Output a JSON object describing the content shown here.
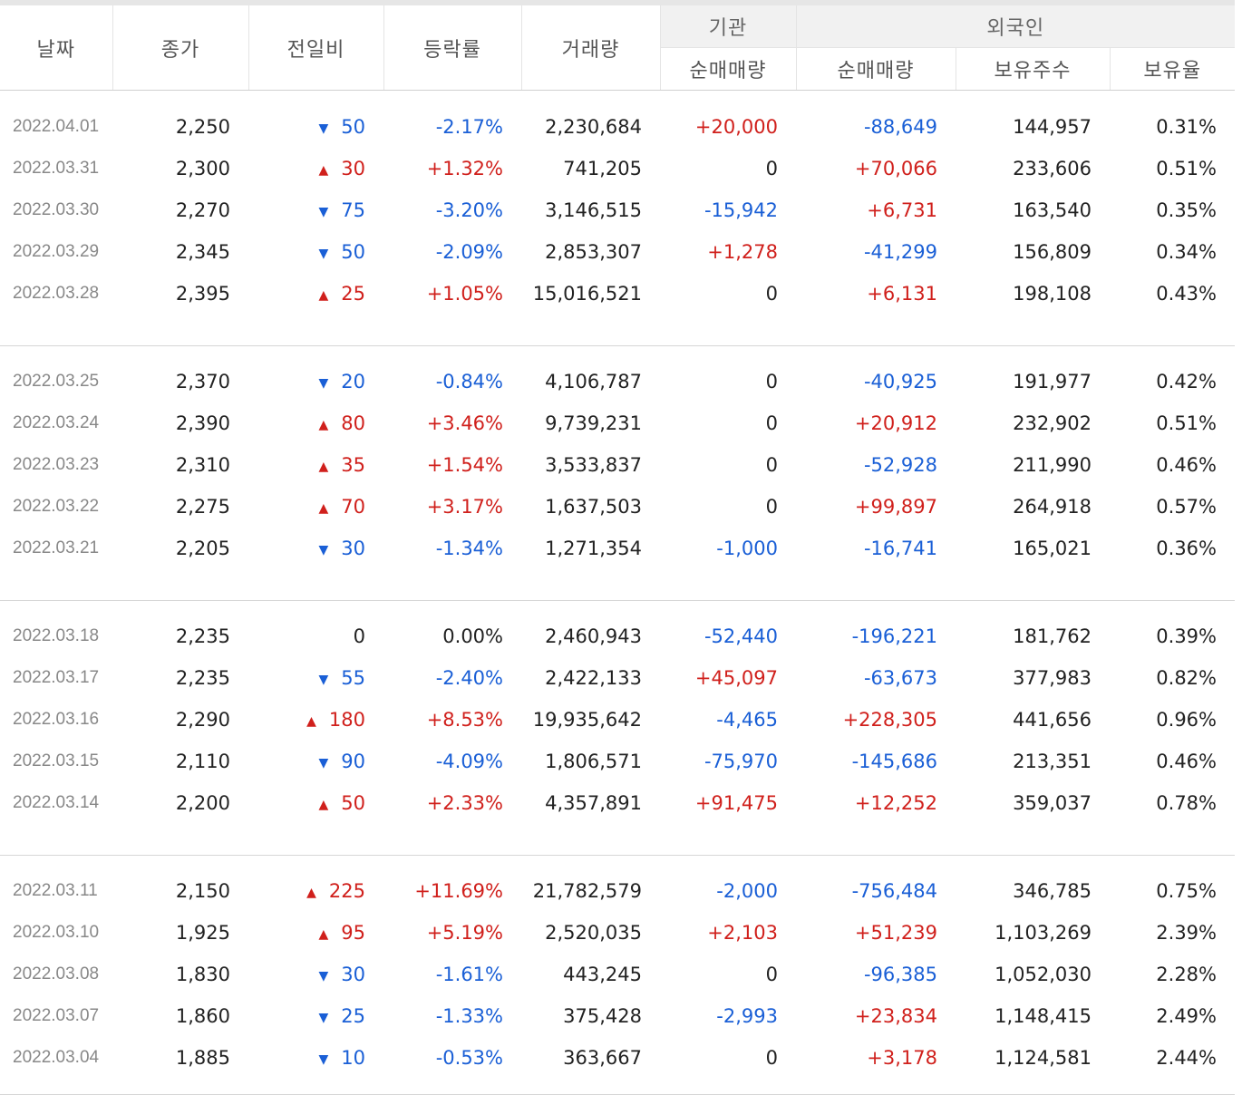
{
  "header": {
    "date": "날짜",
    "close": "종가",
    "diff": "전일비",
    "rate": "등락률",
    "volume": "거래량",
    "inst_group": "기관",
    "inst_net": "순매매량",
    "foreign_group": "외국인",
    "foreign_net": "순매매량",
    "foreign_hold": "보유주수",
    "foreign_ratio": "보유율"
  },
  "colors": {
    "up": "#d0201c",
    "down": "#1a5fd6",
    "date": "#888888",
    "header_group_bg": "#f1f1f1"
  },
  "icons": {
    "up": "triangle-up-icon",
    "down": "triangle-down-icon"
  },
  "groups": [
    [
      {
        "date": "2022.04.01",
        "close": "2,250",
        "dir": "down",
        "diff": "50",
        "rate": "-2.17%",
        "volume": "2,230,684",
        "inst": "+20,000",
        "fnet": "-88,649",
        "fhold": "144,957",
        "fratio": "0.31%"
      },
      {
        "date": "2022.03.31",
        "close": "2,300",
        "dir": "up",
        "diff": "30",
        "rate": "+1.32%",
        "volume": "741,205",
        "inst": "0",
        "fnet": "+70,066",
        "fhold": "233,606",
        "fratio": "0.51%"
      },
      {
        "date": "2022.03.30",
        "close": "2,270",
        "dir": "down",
        "diff": "75",
        "rate": "-3.20%",
        "volume": "3,146,515",
        "inst": "-15,942",
        "fnet": "+6,731",
        "fhold": "163,540",
        "fratio": "0.35%"
      },
      {
        "date": "2022.03.29",
        "close": "2,345",
        "dir": "down",
        "diff": "50",
        "rate": "-2.09%",
        "volume": "2,853,307",
        "inst": "+1,278",
        "fnet": "-41,299",
        "fhold": "156,809",
        "fratio": "0.34%"
      },
      {
        "date": "2022.03.28",
        "close": "2,395",
        "dir": "up",
        "diff": "25",
        "rate": "+1.05%",
        "volume": "15,016,521",
        "inst": "0",
        "fnet": "+6,131",
        "fhold": "198,108",
        "fratio": "0.43%"
      }
    ],
    [
      {
        "date": "2022.03.25",
        "close": "2,370",
        "dir": "down",
        "diff": "20",
        "rate": "-0.84%",
        "volume": "4,106,787",
        "inst": "0",
        "fnet": "-40,925",
        "fhold": "191,977",
        "fratio": "0.42%"
      },
      {
        "date": "2022.03.24",
        "close": "2,390",
        "dir": "up",
        "diff": "80",
        "rate": "+3.46%",
        "volume": "9,739,231",
        "inst": "0",
        "fnet": "+20,912",
        "fhold": "232,902",
        "fratio": "0.51%"
      },
      {
        "date": "2022.03.23",
        "close": "2,310",
        "dir": "up",
        "diff": "35",
        "rate": "+1.54%",
        "volume": "3,533,837",
        "inst": "0",
        "fnet": "-52,928",
        "fhold": "211,990",
        "fratio": "0.46%"
      },
      {
        "date": "2022.03.22",
        "close": "2,275",
        "dir": "up",
        "diff": "70",
        "rate": "+3.17%",
        "volume": "1,637,503",
        "inst": "0",
        "fnet": "+99,897",
        "fhold": "264,918",
        "fratio": "0.57%"
      },
      {
        "date": "2022.03.21",
        "close": "2,205",
        "dir": "down",
        "diff": "30",
        "rate": "-1.34%",
        "volume": "1,271,354",
        "inst": "-1,000",
        "fnet": "-16,741",
        "fhold": "165,021",
        "fratio": "0.36%"
      }
    ],
    [
      {
        "date": "2022.03.18",
        "close": "2,235",
        "dir": "flat",
        "diff": "0",
        "rate": "0.00%",
        "volume": "2,460,943",
        "inst": "-52,440",
        "fnet": "-196,221",
        "fhold": "181,762",
        "fratio": "0.39%"
      },
      {
        "date": "2022.03.17",
        "close": "2,235",
        "dir": "down",
        "diff": "55",
        "rate": "-2.40%",
        "volume": "2,422,133",
        "inst": "+45,097",
        "fnet": "-63,673",
        "fhold": "377,983",
        "fratio": "0.82%"
      },
      {
        "date": "2022.03.16",
        "close": "2,290",
        "dir": "up",
        "diff": "180",
        "rate": "+8.53%",
        "volume": "19,935,642",
        "inst": "-4,465",
        "fnet": "+228,305",
        "fhold": "441,656",
        "fratio": "0.96%"
      },
      {
        "date": "2022.03.15",
        "close": "2,110",
        "dir": "down",
        "diff": "90",
        "rate": "-4.09%",
        "volume": "1,806,571",
        "inst": "-75,970",
        "fnet": "-145,686",
        "fhold": "213,351",
        "fratio": "0.46%"
      },
      {
        "date": "2022.03.14",
        "close": "2,200",
        "dir": "up",
        "diff": "50",
        "rate": "+2.33%",
        "volume": "4,357,891",
        "inst": "+91,475",
        "fnet": "+12,252",
        "fhold": "359,037",
        "fratio": "0.78%"
      }
    ],
    [
      {
        "date": "2022.03.11",
        "close": "2,150",
        "dir": "up",
        "diff": "225",
        "rate": "+11.69%",
        "volume": "21,782,579",
        "inst": "-2,000",
        "fnet": "-756,484",
        "fhold": "346,785",
        "fratio": "0.75%"
      },
      {
        "date": "2022.03.10",
        "close": "1,925",
        "dir": "up",
        "diff": "95",
        "rate": "+5.19%",
        "volume": "2,520,035",
        "inst": "+2,103",
        "fnet": "+51,239",
        "fhold": "1,103,269",
        "fratio": "2.39%"
      },
      {
        "date": "2022.03.08",
        "close": "1,830",
        "dir": "down",
        "diff": "30",
        "rate": "-1.61%",
        "volume": "443,245",
        "inst": "0",
        "fnet": "-96,385",
        "fhold": "1,052,030",
        "fratio": "2.28%"
      },
      {
        "date": "2022.03.07",
        "close": "1,860",
        "dir": "down",
        "diff": "25",
        "rate": "-1.33%",
        "volume": "375,428",
        "inst": "-2,993",
        "fnet": "+23,834",
        "fhold": "1,148,415",
        "fratio": "2.49%"
      },
      {
        "date": "2022.03.04",
        "close": "1,885",
        "dir": "down",
        "diff": "10",
        "rate": "-0.53%",
        "volume": "363,667",
        "inst": "0",
        "fnet": "+3,178",
        "fhold": "1,124,581",
        "fratio": "2.44%"
      }
    ]
  ]
}
